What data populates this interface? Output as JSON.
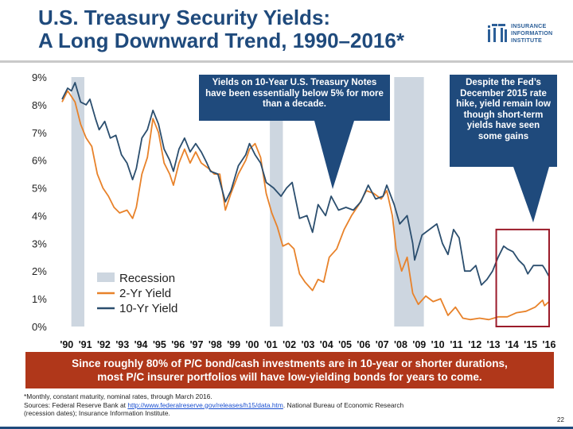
{
  "slide": {
    "title_line1": "U.S. Treasury Security Yields:",
    "title_line2": "A Long Downward Trend, 1990–2016*",
    "page_number": "22"
  },
  "logo": {
    "line1": "INSURANCE",
    "line2": "INFORMATION",
    "line3": "INSTITUTE"
  },
  "callouts": {
    "left": "Yields on 10-Year U.S. Treasury Notes have been essentially below 5% for more than a decade.",
    "right": "Despite the Fed’s December 2015 rate hike, yield remain low though short-term yields have seen some gains"
  },
  "banner": {
    "line1": "Since roughly 80% of P/C bond/cash investments are in 10-year or shorter durations,",
    "line2": "most P/C insurer portfolios will have low-yielding bonds for years to come."
  },
  "footnote": {
    "note": "*Monthly, constant maturity, nominal rates, through March 2016.",
    "source_prefix": "Sources: Federal Reserve Bank at ",
    "source_link": "http://www.federalreserve.gov/releases/h15/data.htm",
    "source_suffix": ". National Bureau of Economic Research",
    "source_line2": "(recession dates); Insurance Information Institute."
  },
  "chart_data": {
    "type": "line",
    "title": "U.S. Treasury Security Yields, 1990–2016",
    "xlabel": "",
    "ylabel": "",
    "ylim": [
      0,
      9
    ],
    "xlim": [
      1990,
      2016.25
    ],
    "grid": false,
    "legend_position": "bottom-left",
    "y_ticks": [
      {
        "value": 0,
        "label": "0%"
      },
      {
        "value": 1,
        "label": "1%"
      },
      {
        "value": 2,
        "label": "2%"
      },
      {
        "value": 3,
        "label": "3%"
      },
      {
        "value": 4,
        "label": "4%"
      },
      {
        "value": 5,
        "label": "5%"
      },
      {
        "value": 6,
        "label": "6%"
      },
      {
        "value": 7,
        "label": "7%"
      },
      {
        "value": 8,
        "label": "8%"
      },
      {
        "value": 9,
        "label": "9%"
      }
    ],
    "x_ticks": [
      {
        "value": 1990.25,
        "label": "'90"
      },
      {
        "value": 1991.25,
        "label": "'91"
      },
      {
        "value": 1992.25,
        "label": "'92"
      },
      {
        "value": 1993.25,
        "label": "'93"
      },
      {
        "value": 1994.25,
        "label": "'94"
      },
      {
        "value": 1995.25,
        "label": "'95"
      },
      {
        "value": 1996.25,
        "label": "'96"
      },
      {
        "value": 1997.25,
        "label": "'97"
      },
      {
        "value": 1998.25,
        "label": "'98"
      },
      {
        "value": 1999.25,
        "label": "'99"
      },
      {
        "value": 2000.25,
        "label": "'00"
      },
      {
        "value": 2001.25,
        "label": "'01"
      },
      {
        "value": 2002.25,
        "label": "'02"
      },
      {
        "value": 2003.25,
        "label": "'03"
      },
      {
        "value": 2004.25,
        "label": "'04"
      },
      {
        "value": 2005.25,
        "label": "'05"
      },
      {
        "value": 2006.25,
        "label": "'06"
      },
      {
        "value": 2007.25,
        "label": "'07"
      },
      {
        "value": 2008.25,
        "label": "'08"
      },
      {
        "value": 2009.25,
        "label": "'09"
      },
      {
        "value": 2010.25,
        "label": "'10"
      },
      {
        "value": 2011.25,
        "label": "'11"
      },
      {
        "value": 2012.25,
        "label": "'12"
      },
      {
        "value": 2013.25,
        "label": "'13"
      },
      {
        "value": 2014.25,
        "label": "'14"
      },
      {
        "value": 2015.25,
        "label": "'15"
      },
      {
        "value": 2016.25,
        "label": "'16"
      }
    ],
    "recessions": [
      {
        "start": 1990.5,
        "end": 1991.2
      },
      {
        "start": 2001.2,
        "end": 2001.9
      },
      {
        "start": 2007.9,
        "end": 2009.5
      }
    ],
    "highlight_box": {
      "start": 2013.4,
      "end": 2016.25,
      "ymin": 0,
      "ymax": 3.5
    },
    "legend": [
      {
        "name": "Recession",
        "kind": "box",
        "color": "#cdd6e0"
      },
      {
        "name": "2-Yr Yield",
        "kind": "line",
        "color": "#e8822a"
      },
      {
        "name": "10-Yr Yield",
        "kind": "line",
        "color": "#2b4e6e"
      }
    ],
    "series": [
      {
        "name": "10-Yr Yield",
        "color": "#2b4e6e",
        "x": [
          1990.0,
          1990.3,
          1990.5,
          1990.7,
          1991.0,
          1991.3,
          1991.5,
          1991.8,
          1992.0,
          1992.3,
          1992.6,
          1992.9,
          1993.2,
          1993.5,
          1993.8,
          1994.0,
          1994.3,
          1994.6,
          1994.9,
          1995.2,
          1995.5,
          1995.8,
          1996.0,
          1996.3,
          1996.6,
          1996.9,
          1997.2,
          1997.5,
          1997.8,
          1998.0,
          1998.4,
          1998.8,
          1999.1,
          1999.5,
          1999.9,
          2000.1,
          2000.4,
          2000.7,
          2001.0,
          2001.4,
          2001.8,
          2002.1,
          2002.4,
          2002.8,
          2003.2,
          2003.5,
          2003.8,
          2004.2,
          2004.5,
          2004.9,
          2005.3,
          2005.7,
          2006.1,
          2006.5,
          2006.9,
          2007.3,
          2007.5,
          2007.9,
          2008.2,
          2008.6,
          2008.9,
          2009.0,
          2009.4,
          2009.8,
          2010.2,
          2010.5,
          2010.8,
          2011.1,
          2011.4,
          2011.7,
          2012.0,
          2012.3,
          2012.6,
          2012.9,
          2013.2,
          2013.5,
          2013.8,
          2014.0,
          2014.3,
          2014.6,
          2014.9,
          2015.1,
          2015.4,
          2015.7,
          2015.9,
          2016.0,
          2016.25
        ],
        "values": [
          8.2,
          8.6,
          8.5,
          8.8,
          8.1,
          8.0,
          8.2,
          7.5,
          7.1,
          7.4,
          6.8,
          6.9,
          6.2,
          5.9,
          5.3,
          5.7,
          6.8,
          7.1,
          7.8,
          7.3,
          6.4,
          6.0,
          5.6,
          6.4,
          6.8,
          6.3,
          6.6,
          6.3,
          5.9,
          5.6,
          5.5,
          4.5,
          4.9,
          5.8,
          6.2,
          6.6,
          6.2,
          5.9,
          5.2,
          5.0,
          4.7,
          5.0,
          5.2,
          3.9,
          4.0,
          3.4,
          4.4,
          4.0,
          4.7,
          4.2,
          4.3,
          4.2,
          4.5,
          5.1,
          4.6,
          4.7,
          5.1,
          4.4,
          3.7,
          4.0,
          3.0,
          2.4,
          3.3,
          3.5,
          3.7,
          3.0,
          2.6,
          3.5,
          3.2,
          2.0,
          2.0,
          2.2,
          1.5,
          1.7,
          2.0,
          2.5,
          2.9,
          2.8,
          2.7,
          2.4,
          2.2,
          1.9,
          2.2,
          2.2,
          2.2,
          2.1,
          1.8
        ]
      },
      {
        "name": "2-Yr Yield",
        "color": "#e8822a",
        "x": [
          1990.0,
          1990.3,
          1990.5,
          1990.7,
          1991.0,
          1991.3,
          1991.6,
          1991.9,
          1992.2,
          1992.5,
          1992.8,
          1993.1,
          1993.5,
          1993.8,
          1994.0,
          1994.3,
          1994.6,
          1994.9,
          1995.2,
          1995.5,
          1995.8,
          1996.0,
          1996.3,
          1996.6,
          1996.9,
          1997.2,
          1997.5,
          1997.9,
          1998.2,
          1998.5,
          1998.8,
          1999.1,
          1999.5,
          1999.9,
          2000.1,
          2000.4,
          2000.7,
          2001.0,
          2001.3,
          2001.6,
          2001.9,
          2002.2,
          2002.5,
          2002.8,
          2003.1,
          2003.5,
          2003.8,
          2004.1,
          2004.4,
          2004.8,
          2005.2,
          2005.6,
          2006.0,
          2006.4,
          2006.8,
          2007.2,
          2007.5,
          2007.8,
          2008.0,
          2008.3,
          2008.6,
          2008.9,
          2009.2,
          2009.6,
          2010.0,
          2010.4,
          2010.8,
          2011.2,
          2011.6,
          2012.0,
          2012.5,
          2013.0,
          2013.5,
          2014.0,
          2014.5,
          2015.0,
          2015.5,
          2015.9,
          2016.0,
          2016.25
        ],
        "values": [
          8.1,
          8.5,
          8.3,
          8.1,
          7.3,
          6.8,
          6.5,
          5.5,
          5.0,
          4.7,
          4.3,
          4.1,
          4.2,
          3.9,
          4.3,
          5.5,
          6.1,
          7.5,
          7.0,
          5.9,
          5.5,
          5.1,
          5.9,
          6.4,
          5.9,
          6.3,
          5.9,
          5.7,
          5.5,
          5.5,
          4.2,
          4.8,
          5.5,
          6.0,
          6.4,
          6.6,
          6.1,
          4.8,
          4.1,
          3.6,
          2.9,
          3.0,
          2.8,
          1.9,
          1.6,
          1.3,
          1.7,
          1.6,
          2.5,
          2.8,
          3.5,
          4.0,
          4.4,
          4.9,
          4.8,
          4.6,
          4.9,
          4.0,
          2.8,
          2.0,
          2.5,
          1.2,
          0.8,
          1.1,
          0.9,
          1.0,
          0.4,
          0.7,
          0.3,
          0.25,
          0.3,
          0.25,
          0.35,
          0.35,
          0.5,
          0.55,
          0.7,
          0.95,
          0.75,
          0.9
        ]
      }
    ]
  }
}
